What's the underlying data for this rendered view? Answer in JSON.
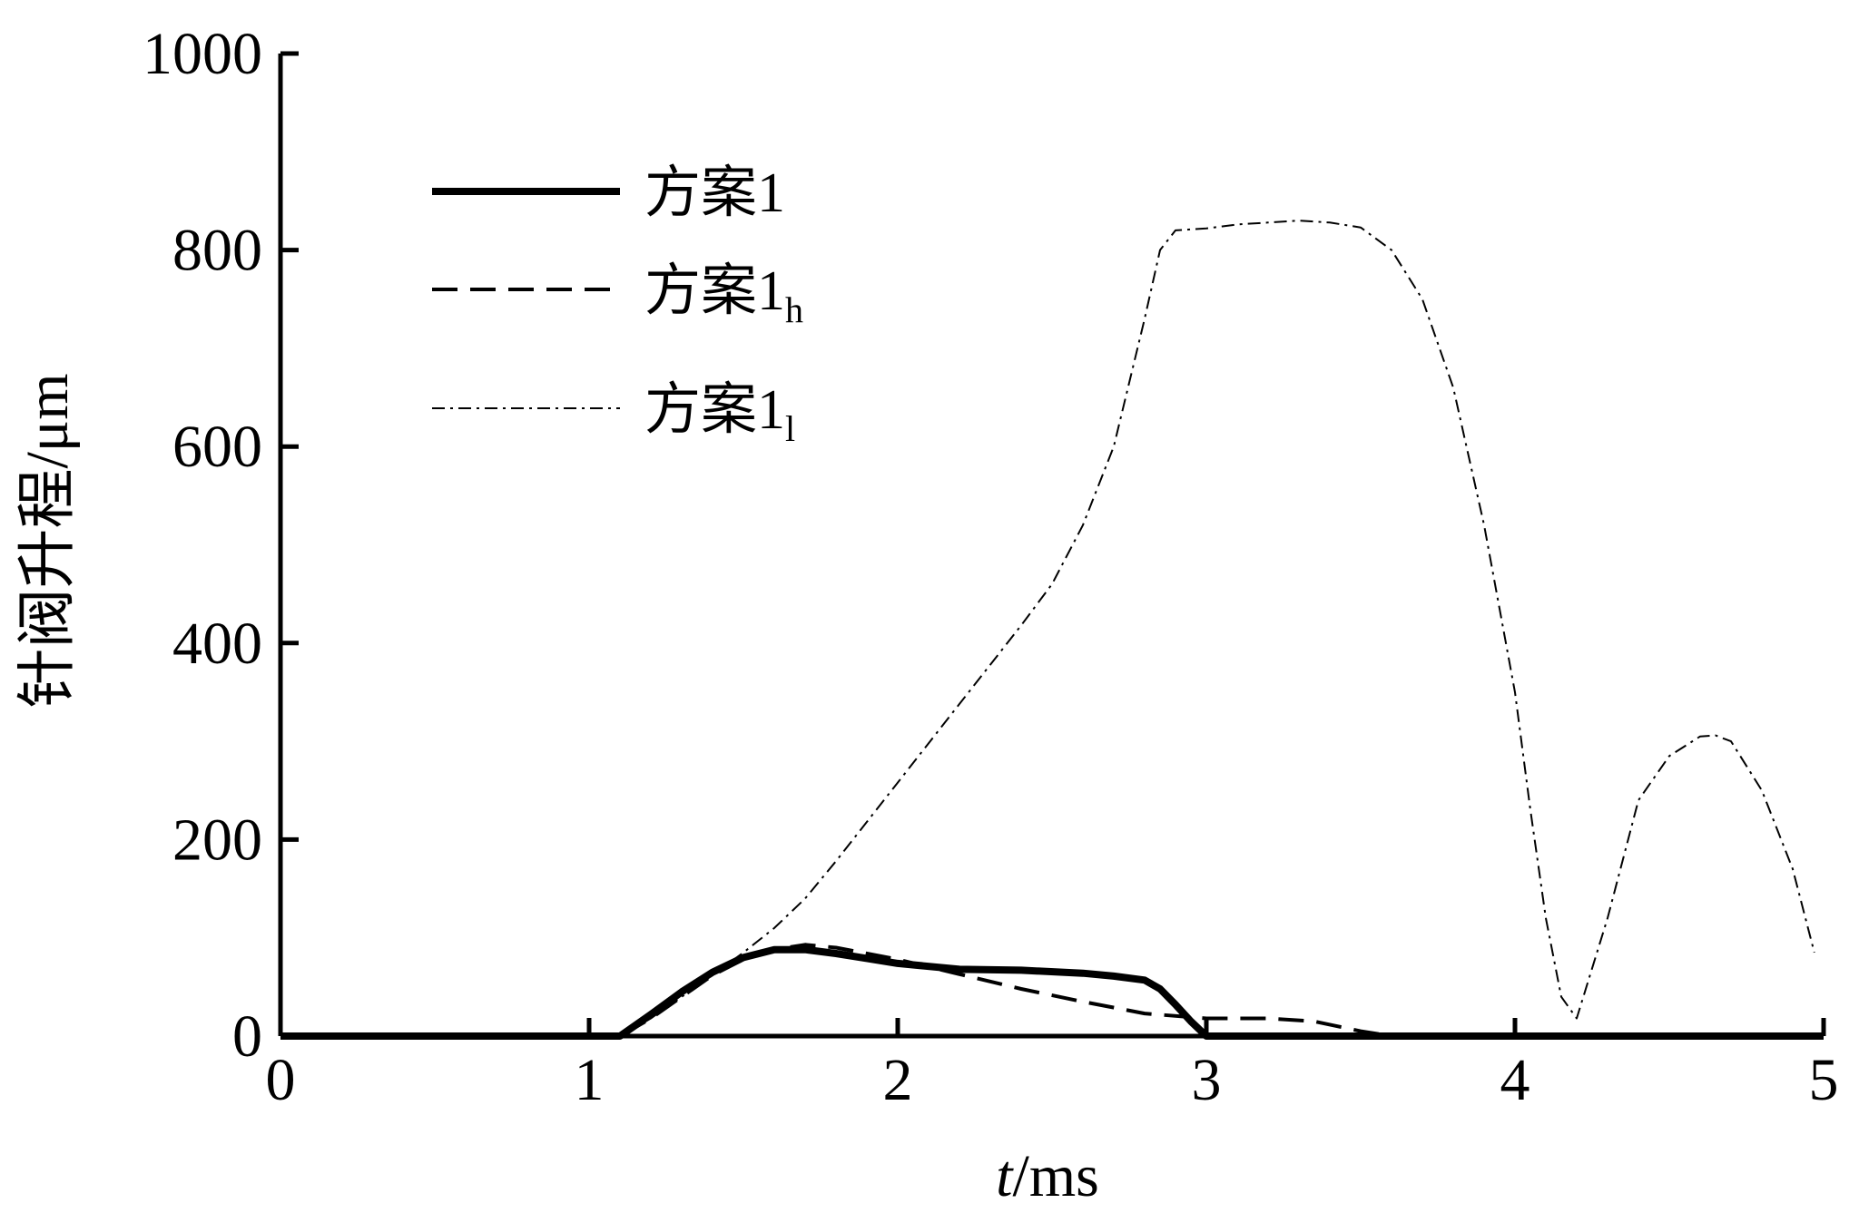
{
  "chart_data": {
    "type": "line",
    "title": "",
    "xlabel_italic": "t",
    "xlabel_rest": "/ms",
    "ylabel": "针阀升程/μm",
    "xlim": [
      0,
      5
    ],
    "ylim": [
      0,
      1000
    ],
    "xticks": [
      "0",
      "1",
      "2",
      "3",
      "4",
      "5"
    ],
    "yticks": [
      "0",
      "200",
      "400",
      "600",
      "800",
      "1000"
    ],
    "grid": false,
    "legend_position": "top-left",
    "series": [
      {
        "name": "方案1",
        "name_sub": "",
        "style": "solid-thick",
        "color": "#000000",
        "x": [
          0,
          1.1,
          1.2,
          1.3,
          1.4,
          1.5,
          1.6,
          1.7,
          1.8,
          1.9,
          2.0,
          2.2,
          2.4,
          2.6,
          2.7,
          2.8,
          2.85,
          2.9,
          2.95,
          3.0,
          3.1,
          3.5,
          4.0,
          4.5,
          5.0
        ],
        "y": [
          0,
          0,
          22,
          45,
          65,
          80,
          88,
          88,
          84,
          79,
          74,
          68,
          67,
          64,
          61,
          57,
          48,
          32,
          15,
          0,
          0,
          0,
          0,
          0,
          0
        ]
      },
      {
        "name": "方案1",
        "name_sub": "h",
        "style": "dashed",
        "color": "#000000",
        "x": [
          0,
          1.1,
          1.2,
          1.3,
          1.4,
          1.5,
          1.6,
          1.7,
          1.8,
          2.0,
          2.2,
          2.4,
          2.6,
          2.8,
          3.0,
          3.2,
          3.35,
          3.5,
          3.6,
          5.0
        ],
        "y": [
          0,
          0,
          18,
          40,
          62,
          78,
          88,
          93,
          90,
          78,
          63,
          48,
          35,
          23,
          18,
          18,
          15,
          5,
          0,
          0
        ]
      },
      {
        "name": "方案1",
        "name_sub": "l",
        "style": "dash-dot",
        "color": "#000000",
        "x": [
          0,
          1.1,
          1.2,
          1.3,
          1.4,
          1.5,
          1.6,
          1.7,
          1.8,
          1.9,
          2.0,
          2.2,
          2.4,
          2.5,
          2.6,
          2.7,
          2.8,
          2.85,
          2.9,
          3.0,
          3.1,
          3.2,
          3.3,
          3.4,
          3.5,
          3.6,
          3.7,
          3.8,
          3.9,
          4.0,
          4.05,
          4.1,
          4.15,
          4.2,
          4.3,
          4.4,
          4.5,
          4.6,
          4.65,
          4.7,
          4.8,
          4.9,
          4.97
        ],
        "y": [
          0,
          0,
          18,
          40,
          62,
          85,
          110,
          140,
          178,
          218,
          258,
          338,
          418,
          460,
          520,
          600,
          730,
          800,
          820,
          822,
          826,
          828,
          830,
          828,
          823,
          800,
          750,
          660,
          520,
          350,
          230,
          120,
          40,
          18,
          120,
          240,
          285,
          305,
          306,
          300,
          250,
          170,
          85
        ]
      }
    ]
  }
}
